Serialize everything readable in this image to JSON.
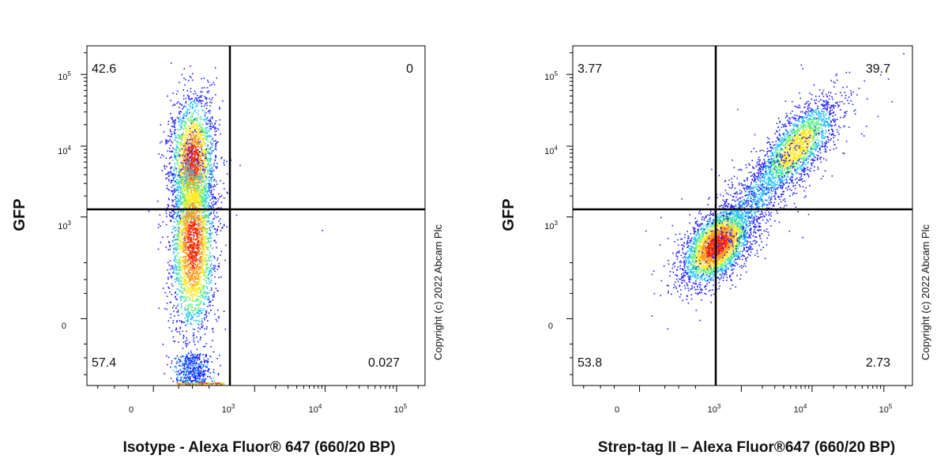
{
  "chart_data": [
    {
      "type": "scatter",
      "subtype": "flow-cytometry-density-dot-plot",
      "xlabel": "Isotype - Alexa Fluor® 647 (660/20 BP)",
      "ylabel": "GFP",
      "x_scale": "biexponential",
      "y_scale": "biexponential",
      "x_ticks": [
        {
          "base": "0",
          "exp": ""
        },
        {
          "base": "10",
          "exp": "3"
        },
        {
          "base": "10",
          "exp": "4"
        },
        {
          "base": "10",
          "exp": "5"
        }
      ],
      "y_ticks": [
        {
          "base": "10",
          "exp": "5"
        },
        {
          "base": "10",
          "exp": "4"
        },
        {
          "base": "10",
          "exp": "3"
        },
        {
          "base": "0",
          "exp": ""
        }
      ],
      "gate": {
        "x": 1250,
        "y": 1500
      },
      "quadrants": {
        "upper_left": "42.6",
        "upper_right": "0",
        "lower_left": "57.4",
        "lower_right": "0.027"
      },
      "populations": [
        {
          "x": 100,
          "y": 6000,
          "spread_x": "narrow",
          "spread_y": "wide"
        },
        {
          "x": 100,
          "y": 400,
          "spread_x": "narrow",
          "spread_y": "wide"
        }
      ],
      "copyright": "Copyright (c) 2022 Abcam Plc"
    },
    {
      "type": "scatter",
      "subtype": "flow-cytometry-density-dot-plot",
      "xlabel": "Strep-tag II – Alexa Fluor®647 (660/20 BP)",
      "ylabel": "GFP",
      "x_scale": "biexponential",
      "y_scale": "biexponential",
      "x_ticks": [
        {
          "base": "0",
          "exp": ""
        },
        {
          "base": "10",
          "exp": "3"
        },
        {
          "base": "10",
          "exp": "4"
        },
        {
          "base": "10",
          "exp": "5"
        }
      ],
      "y_ticks": [
        {
          "base": "10",
          "exp": "5"
        },
        {
          "base": "10",
          "exp": "4"
        },
        {
          "base": "10",
          "exp": "3"
        },
        {
          "base": "0",
          "exp": ""
        }
      ],
      "gate": {
        "x": 1250,
        "y": 1500
      },
      "quadrants": {
        "upper_left": "3.77",
        "upper_right": "39.7",
        "lower_left": "53.8",
        "lower_right": "2.73"
      },
      "populations": [
        {
          "x_from": 150,
          "y_from": 100,
          "x_to": 30000,
          "y_to": 70000,
          "shape": "diagonal"
        }
      ],
      "copyright": "Copyright (c) 2022 Abcam Plc"
    }
  ],
  "colors": {
    "density_low": "#1a1aff",
    "density_mid": "#22c3ff",
    "density_high": "#ffe81a",
    "density_peak": "#ff2a00",
    "axis": "#000000"
  }
}
